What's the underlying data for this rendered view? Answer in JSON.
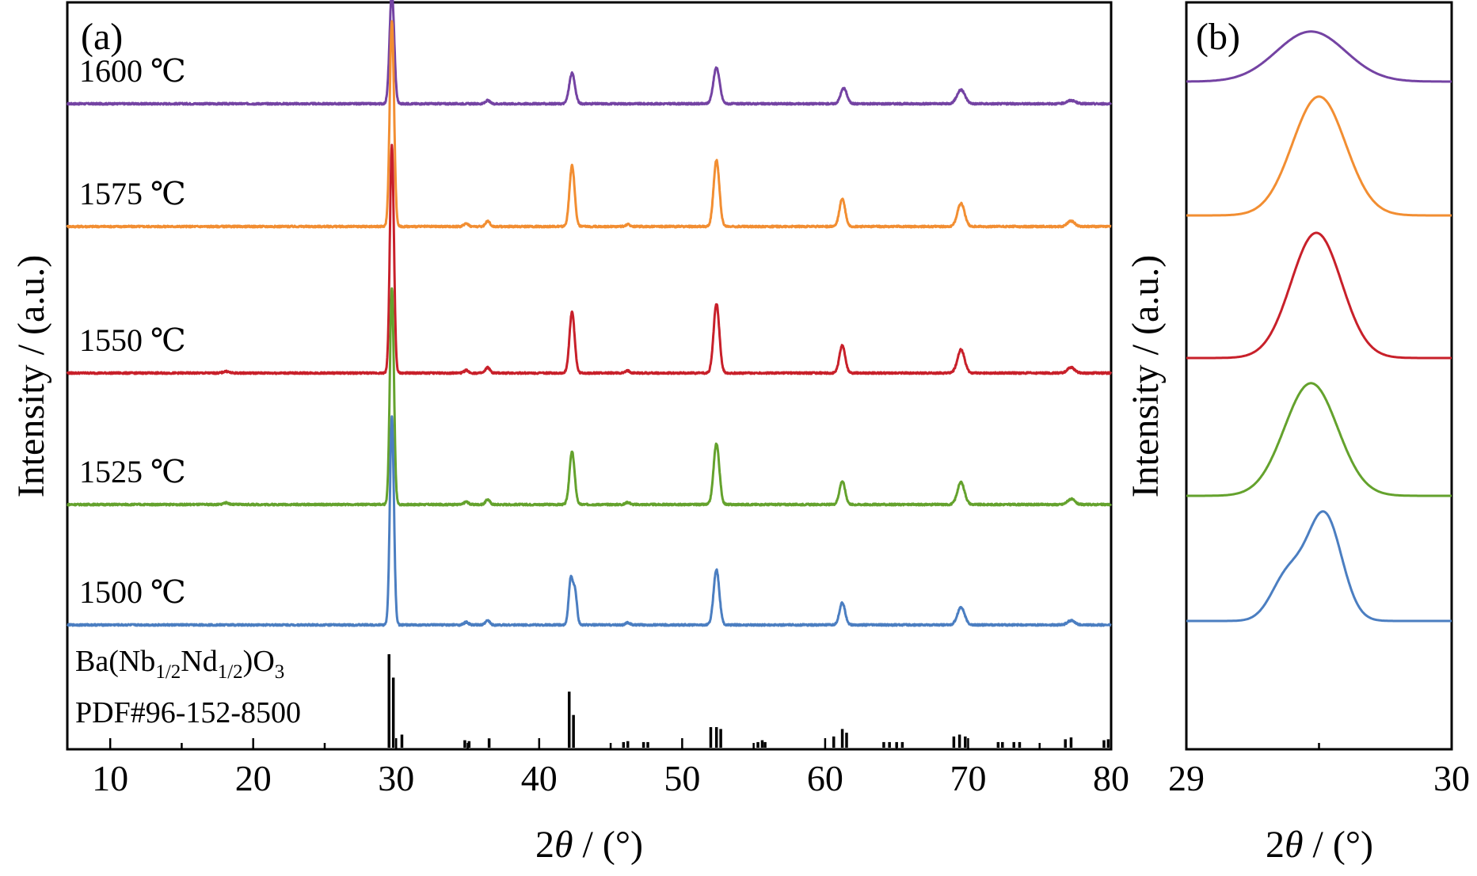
{
  "colors": {
    "1600": "#7443a3",
    "1575": "#f28e32",
    "1550": "#c8202a",
    "1525": "#64a22d",
    "1500": "#4b7ec1"
  },
  "chart_data": [
    {
      "panel": "(a)",
      "type": "line",
      "xlabel_prefix": "2",
      "xlabel_theta": "θ",
      "xlabel_suffix": " / (°)",
      "ylabel": "Intensity / (a.u.)",
      "xlim": [
        7,
        80
      ],
      "xticks": [
        10,
        20,
        30,
        40,
        50,
        60,
        70,
        80
      ],
      "series": [
        {
          "name": "1600 ℃",
          "color_key": "1600",
          "baseline": 4.0,
          "scale": 0.45,
          "peaks": [
            [
              29.7,
              2.0,
              0.16
            ],
            [
              42.3,
              0.55,
              0.2
            ],
            [
              52.4,
              0.65,
              0.22
            ],
            [
              61.3,
              0.28,
              0.22
            ],
            [
              69.5,
              0.25,
              0.28
            ],
            [
              36.4,
              0.06,
              0.15
            ],
            [
              77.2,
              0.06,
              0.3
            ]
          ]
        },
        {
          "name": "1575 ℃",
          "color_key": "1575",
          "baseline": 3.0,
          "scale": 0.45,
          "peaks": [
            [
              29.7,
              3.7,
              0.15
            ],
            [
              42.3,
              1.1,
              0.18
            ],
            [
              52.4,
              1.2,
              0.2
            ],
            [
              61.2,
              0.5,
              0.2
            ],
            [
              69.5,
              0.42,
              0.25
            ],
            [
              34.9,
              0.06,
              0.15
            ],
            [
              36.4,
              0.1,
              0.15
            ],
            [
              46.2,
              0.04,
              0.15
            ],
            [
              77.2,
              0.1,
              0.25
            ]
          ]
        },
        {
          "name": "1550 ℃",
          "color_key": "1550",
          "baseline": 2.0,
          "scale": 0.45,
          "peaks": [
            [
              29.7,
              4.1,
              0.14
            ],
            [
              42.3,
              1.1,
              0.18
            ],
            [
              52.4,
              1.25,
              0.2
            ],
            [
              61.2,
              0.5,
              0.2
            ],
            [
              69.5,
              0.42,
              0.25
            ],
            [
              34.9,
              0.05,
              0.15
            ],
            [
              36.4,
              0.1,
              0.15
            ],
            [
              46.2,
              0.04,
              0.15
            ],
            [
              18.1,
              0.03,
              0.2
            ],
            [
              77.2,
              0.1,
              0.25
            ]
          ]
        },
        {
          "name": "1525 ℃",
          "color_key": "1525",
          "baseline": 1.0,
          "scale": 0.45,
          "peaks": [
            [
              29.7,
              3.9,
              0.14
            ],
            [
              42.3,
              0.95,
              0.18
            ],
            [
              52.4,
              1.1,
              0.2
            ],
            [
              61.2,
              0.42,
              0.2
            ],
            [
              69.5,
              0.4,
              0.25
            ],
            [
              34.9,
              0.05,
              0.15
            ],
            [
              36.4,
              0.09,
              0.15
            ],
            [
              46.2,
              0.04,
              0.15
            ],
            [
              18.1,
              0.03,
              0.2
            ],
            [
              77.2,
              0.1,
              0.25
            ]
          ]
        },
        {
          "name": "1500 ℃",
          "color_key": "1500",
          "baseline": 0.0,
          "scale": 0.45,
          "peaks": [
            [
              29.7,
              3.75,
              0.14
            ],
            [
              42.2,
              0.8,
              0.14
            ],
            [
              42.5,
              0.6,
              0.14
            ],
            [
              52.4,
              1.0,
              0.2
            ],
            [
              61.2,
              0.4,
              0.2
            ],
            [
              69.5,
              0.32,
              0.25
            ],
            [
              34.9,
              0.05,
              0.15
            ],
            [
              36.4,
              0.08,
              0.15
            ],
            [
              46.2,
              0.04,
              0.15
            ],
            [
              77.2,
              0.08,
              0.25
            ]
          ]
        }
      ],
      "reference": {
        "formula_parts": [
          "Ba(Nb",
          "1/2",
          "Nd",
          "1/2",
          ")O",
          "3"
        ],
        "card": "PDF#96-152-8500",
        "lines": [
          [
            29.5,
            1.0
          ],
          [
            29.8,
            0.75
          ],
          [
            30.4,
            0.14
          ],
          [
            34.8,
            0.08
          ],
          [
            35.1,
            0.07
          ],
          [
            36.5,
            0.1
          ],
          [
            42.1,
            0.6
          ],
          [
            42.4,
            0.35
          ],
          [
            45.9,
            0.06
          ],
          [
            46.2,
            0.07
          ],
          [
            47.3,
            0.06
          ],
          [
            47.6,
            0.06
          ],
          [
            52.0,
            0.22
          ],
          [
            52.4,
            0.22
          ],
          [
            52.7,
            0.2
          ],
          [
            55.3,
            0.06
          ],
          [
            55.6,
            0.08
          ],
          [
            55.8,
            0.06
          ],
          [
            60.6,
            0.12
          ],
          [
            61.2,
            0.2
          ],
          [
            61.5,
            0.16
          ],
          [
            64.1,
            0.06
          ],
          [
            64.5,
            0.06
          ],
          [
            65.0,
            0.06
          ],
          [
            65.4,
            0.06
          ],
          [
            69.0,
            0.12
          ],
          [
            69.4,
            0.14
          ],
          [
            69.8,
            0.12
          ],
          [
            72.1,
            0.06
          ],
          [
            72.4,
            0.06
          ],
          [
            73.2,
            0.06
          ],
          [
            73.6,
            0.06
          ],
          [
            76.8,
            0.09
          ],
          [
            77.2,
            0.11
          ],
          [
            79.5,
            0.08
          ],
          [
            79.8,
            0.09
          ]
        ]
      }
    },
    {
      "panel": "(b)",
      "type": "line",
      "xlabel_prefix": "2",
      "xlabel_theta": "θ",
      "xlabel_suffix": " / (°)",
      "ylabel": "Intensity / (a.u.)",
      "xlim": [
        29,
        30
      ],
      "xticks": [
        29,
        30
      ],
      "series": [
        {
          "name": "1600 ℃",
          "color_key": "1600",
          "baseline": 4.0,
          "peaks": [
            [
              29.47,
              0.4,
              0.13
            ]
          ]
        },
        {
          "name": "1575 ℃",
          "color_key": "1575",
          "baseline": 3.0,
          "peaks": [
            [
              29.5,
              0.95,
              0.1
            ]
          ]
        },
        {
          "name": "1550 ℃",
          "color_key": "1550",
          "baseline": 2.0,
          "peaks": [
            [
              29.49,
              1.0,
              0.095
            ]
          ]
        },
        {
          "name": "1525 ℃",
          "color_key": "1525",
          "baseline": 1.0,
          "peaks": [
            [
              29.47,
              0.9,
              0.1
            ]
          ]
        },
        {
          "name": "1500 ℃",
          "color_key": "1500",
          "baseline": 0.0,
          "peaks": [
            [
              29.52,
              0.85,
              0.065
            ],
            [
              29.38,
              0.35,
              0.06
            ]
          ]
        }
      ]
    }
  ]
}
